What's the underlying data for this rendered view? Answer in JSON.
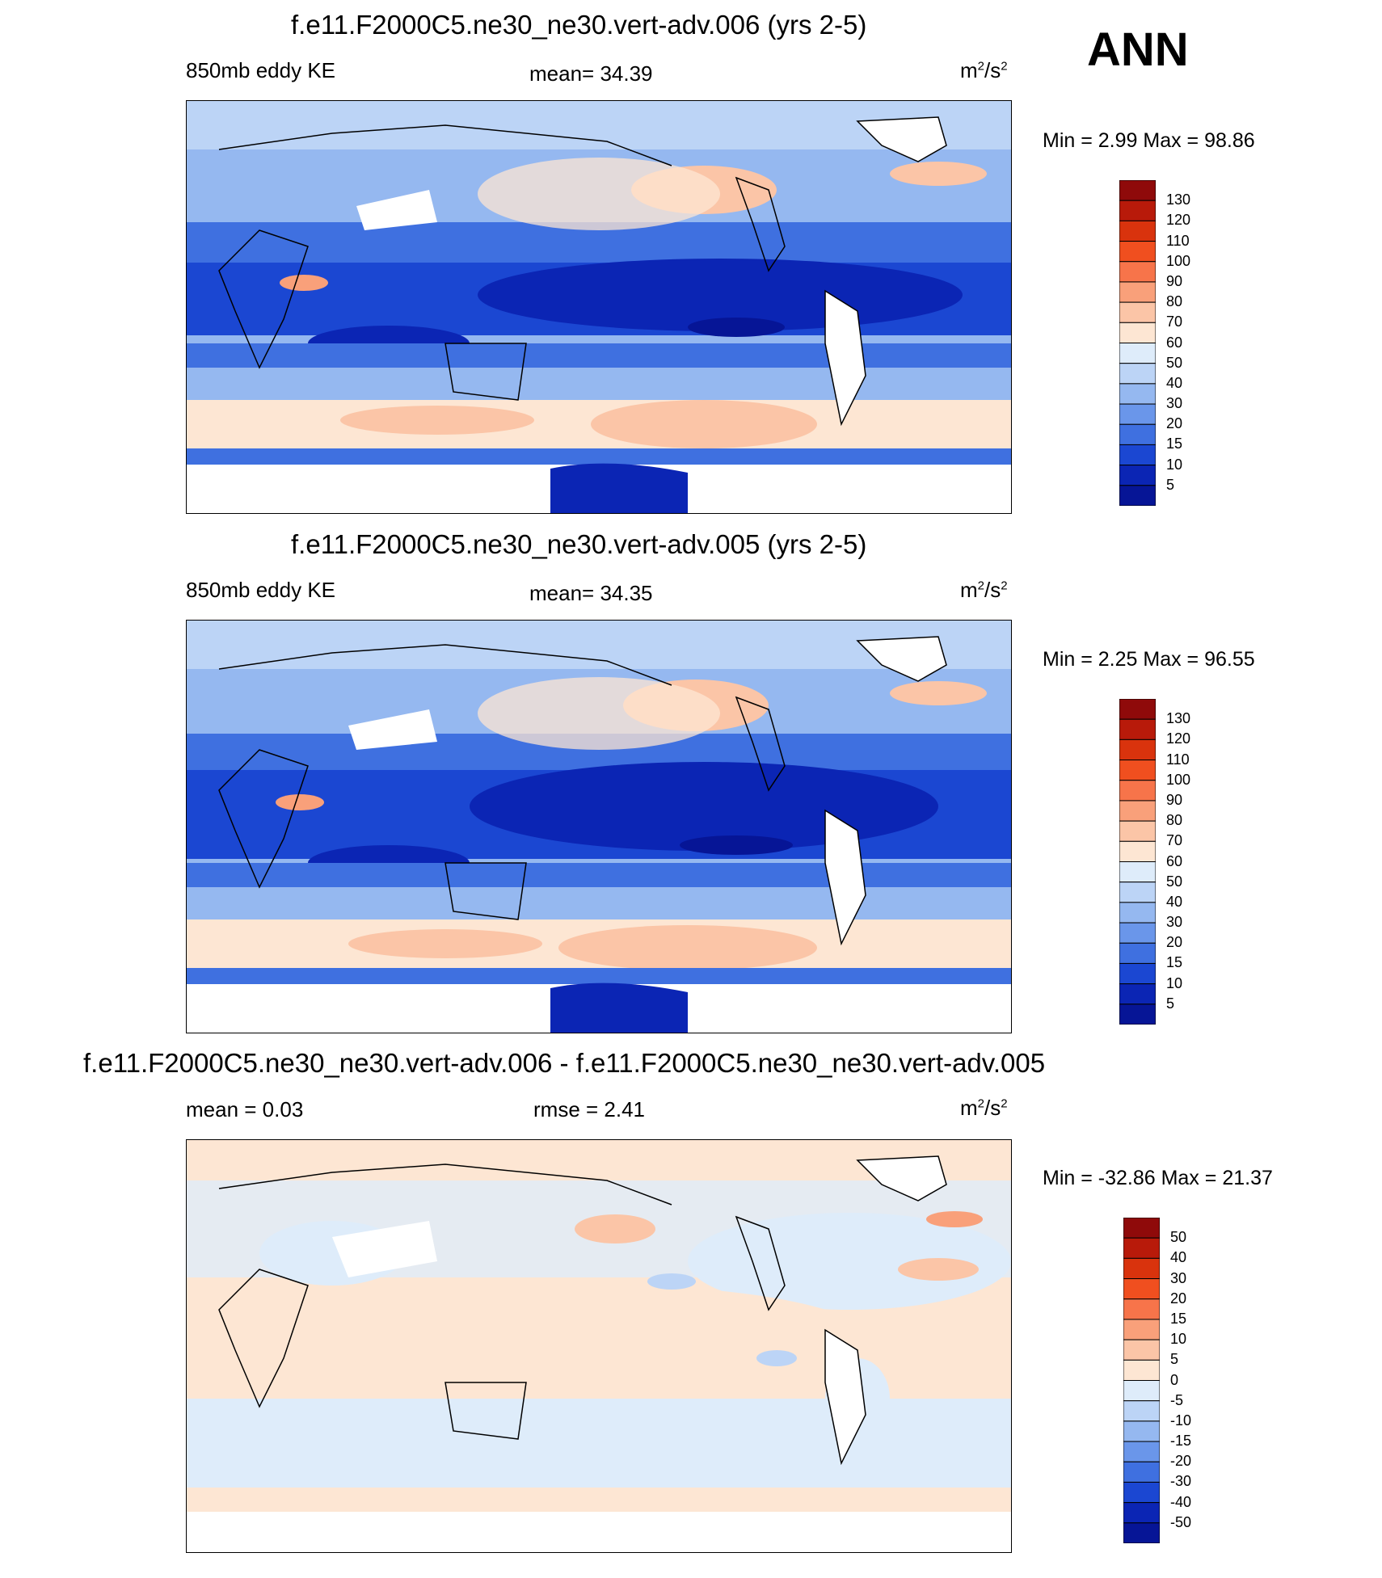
{
  "season": "ANN",
  "panels": [
    {
      "title": "f.e11.F2000C5.ne30_ne30.vert-adv.006 (yrs 2-5)",
      "left_label": "850mb eddy KE",
      "center_label": "mean=  34.39",
      "units_base": "m",
      "units_exp1": "2",
      "units_mid": "/s",
      "units_exp2": "2",
      "minmax": "Min =    2.99 Max =  98.86",
      "levels": [
        "130",
        "120",
        "110",
        "100",
        "90",
        "80",
        "70",
        "60",
        "50",
        "40",
        "30",
        "20",
        "15",
        "10",
        "5"
      ],
      "colors": [
        "#8f0a0a",
        "#b81a0a",
        "#d9330d",
        "#f04f1f",
        "#f7744a",
        "#f9a07a",
        "#fbc5a7",
        "#fde6d3",
        "#deecfa",
        "#bcd4f6",
        "#95b8f0",
        "#6a96ea",
        "#3f70e0",
        "#1b47d2",
        "#0b25b4",
        "#061596"
      ]
    },
    {
      "title": "f.e11.F2000C5.ne30_ne30.vert-adv.005 (yrs 2-5)",
      "left_label": "850mb eddy KE",
      "center_label": "mean=  34.35",
      "units_base": "m",
      "units_exp1": "2",
      "units_mid": "/s",
      "units_exp2": "2",
      "minmax": "Min =    2.25 Max =  96.55",
      "levels": [
        "130",
        "120",
        "110",
        "100",
        "90",
        "80",
        "70",
        "60",
        "50",
        "40",
        "30",
        "20",
        "15",
        "10",
        "5"
      ],
      "colors": [
        "#8f0a0a",
        "#b81a0a",
        "#d9330d",
        "#f04f1f",
        "#f7744a",
        "#f9a07a",
        "#fbc5a7",
        "#fde6d3",
        "#deecfa",
        "#bcd4f6",
        "#95b8f0",
        "#6a96ea",
        "#3f70e0",
        "#1b47d2",
        "#0b25b4",
        "#061596"
      ]
    },
    {
      "title": "f.e11.F2000C5.ne30_ne30.vert-adv.006 - f.e11.F2000C5.ne30_ne30.vert-adv.005",
      "left_label": "mean =    0.03",
      "center_label": "rmse =    2.41",
      "units_base": "m",
      "units_exp1": "2",
      "units_mid": "/s",
      "units_exp2": "2",
      "minmax": "Min = -32.86 Max =  21.37",
      "levels": [
        "50",
        "40",
        "30",
        "20",
        "15",
        "10",
        "5",
        "0",
        "-5",
        "-10",
        "-15",
        "-20",
        "-30",
        "-40",
        "-50"
      ],
      "colors": [
        "#8f0a0a",
        "#b81a0a",
        "#d9330d",
        "#f04f1f",
        "#f7744a",
        "#f9a07a",
        "#fbc5a7",
        "#fde6d3",
        "#deecfa",
        "#bcd4f6",
        "#95b8f0",
        "#6a96ea",
        "#3f70e0",
        "#1b47d2",
        "#0b25b4",
        "#061596"
      ]
    }
  ]
}
